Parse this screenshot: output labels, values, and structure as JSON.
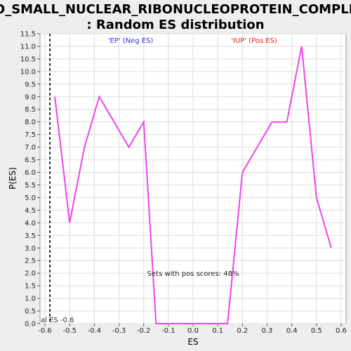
{
  "chart_data": {
    "type": "line",
    "title": "GO_SMALL_NUCLEAR_RIBONUCLEOPROTEIN_COMPLEX",
    "subtitle": ": Random ES distribution",
    "xlabel": "ES",
    "ylabel": "P(ES)",
    "xlim": [
      -0.62,
      0.62
    ],
    "ylim": [
      0,
      11.5
    ],
    "x_ticks": [
      "-0.6",
      "-0.5",
      "-0.4",
      "-0.3",
      "-0.2",
      "-0.1",
      "0.0",
      "0.1",
      "0.2",
      "0.3",
      "0.4",
      "0.5",
      "0.6"
    ],
    "y_ticks": [
      "0.0",
      "0.5",
      "1.0",
      "1.5",
      "2.0",
      "2.5",
      "3.0",
      "3.5",
      "4.0",
      "4.5",
      "5.0",
      "5.5",
      "6.0",
      "6.5",
      "7.0",
      "7.5",
      "8.0",
      "8.5",
      "9.0",
      "9.5",
      "10.0",
      "10.5",
      "11.0",
      "11.5"
    ],
    "grid": true,
    "series": [
      {
        "color": "#ee44ee",
        "x": [
          -0.56,
          -0.5,
          -0.44,
          -0.38,
          -0.32,
          -0.26,
          -0.2,
          -0.15,
          -0.1,
          -0.04,
          0.02,
          0.08,
          0.14,
          0.2,
          0.26,
          0.32,
          0.38,
          0.44,
          0.5,
          0.56
        ],
        "y": [
          9.0,
          4.0,
          7.0,
          9.0,
          8.0,
          7.0,
          8.0,
          0.0,
          0.0,
          0.0,
          0.0,
          0.0,
          0.0,
          6.0,
          7.0,
          8.0,
          8.0,
          11.0,
          5.0,
          3.0
        ]
      }
    ],
    "actual_es": {
      "x": -0.58,
      "label": "al ES -0.6"
    },
    "annotations": {
      "neg_label": "'EP' (Neg ES)",
      "neg_color": "#3333cc",
      "pos_label": "'IUP' (Pos ES)",
      "pos_color": "#dd2222",
      "pos_scores_label": "Sets with pos scores: 48%"
    }
  }
}
